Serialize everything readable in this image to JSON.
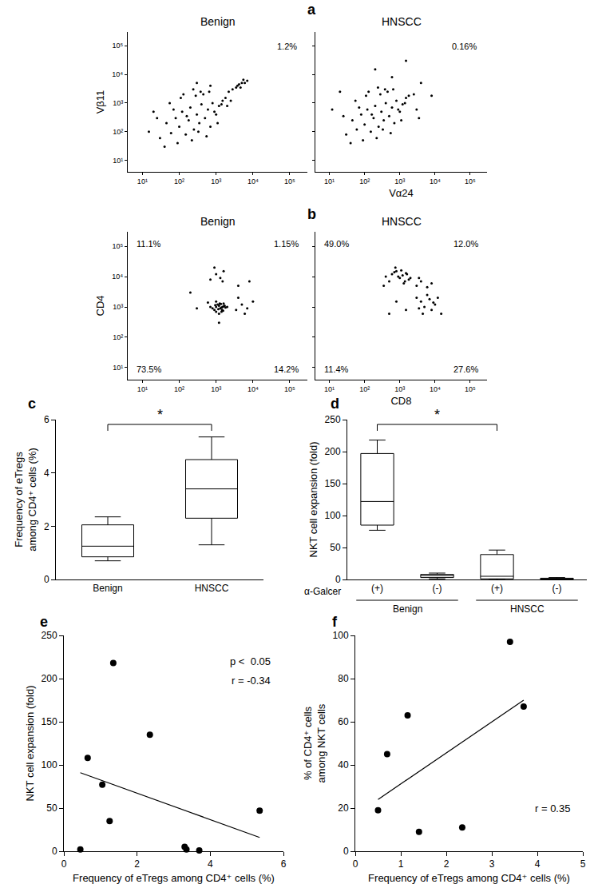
{
  "chart_data": [
    {
      "type": "scatter",
      "panel": "a",
      "title": "Benign",
      "ylabel": "Vβ11",
      "log": true,
      "color": "#000000",
      "xlim": [
        4,
        300000
      ],
      "ylim": [
        4,
        300000
      ],
      "xticks": [
        {
          "value": 10,
          "label": "10¹"
        },
        {
          "value": 100,
          "label": "10²"
        },
        {
          "value": 1000,
          "label": "10³"
        },
        {
          "value": 10000,
          "label": "10⁴"
        },
        {
          "value": 100000,
          "label": "10⁵"
        }
      ],
      "yticks": [
        {
          "value": 10,
          "label": "10¹"
        },
        {
          "value": 100,
          "label": "10²"
        },
        {
          "value": 1000,
          "label": "10³"
        },
        {
          "value": 10000,
          "label": "10⁴"
        },
        {
          "value": 100000,
          "label": "10⁵"
        }
      ],
      "x": [
        30,
        45,
        60,
        80,
        100,
        120,
        150,
        180,
        200,
        250,
        300,
        350,
        400,
        500,
        600,
        700,
        800,
        1000,
        1200,
        1500,
        40,
        70,
        90,
        110,
        160,
        220,
        280,
        330,
        450,
        550,
        650,
        900,
        1100,
        1400,
        1800,
        25,
        55,
        130,
        240,
        380,
        2200,
        2800,
        3500,
        4200,
        5000,
        6000,
        7000,
        3800,
        4600,
        5500,
        2000,
        15,
        20,
        2500,
        300,
        700
      ],
      "y": [
        60,
        200,
        90,
        300,
        150,
        500,
        80,
        250,
        700,
        120,
        400,
        200,
        900,
        300,
        600,
        150,
        1000,
        400,
        800,
        1200,
        30,
        600,
        40,
        1500,
        350,
        50,
        1800,
        100,
        2000,
        70,
        2500,
        500,
        200,
        900,
        1500,
        300,
        1000,
        2000,
        3000,
        2500,
        2500,
        3000,
        3500,
        4500,
        5000,
        5000,
        6000,
        4000,
        3500,
        6500,
        800,
        100,
        500,
        1200,
        5000,
        4000
      ],
      "gate": {
        "x": [
          2000,
          12000
        ],
        "y": [
          1200,
          9000
        ],
        "label": "1.2%"
      }
    },
    {
      "type": "scatter",
      "title": "HNSCC",
      "xlabel": "Vα24",
      "log": true,
      "color": "#000000",
      "tick_labels": "x",
      "xlim": [
        4,
        300000
      ],
      "ylim": [
        4,
        300000
      ],
      "xticks": [
        {
          "value": 10,
          "label": "10¹"
        },
        {
          "value": 100,
          "label": "10²"
        },
        {
          "value": 1000,
          "label": "10³"
        },
        {
          "value": 10000,
          "label": "10⁴"
        },
        {
          "value": 100000,
          "label": "10⁵"
        }
      ],
      "yticks": [
        10,
        100,
        1000,
        10000,
        100000
      ],
      "x": [
        30,
        45,
        60,
        80,
        100,
        120,
        150,
        180,
        200,
        250,
        300,
        350,
        400,
        500,
        600,
        700,
        800,
        1000,
        1200,
        1500,
        40,
        70,
        90,
        110,
        160,
        220,
        280,
        330,
        450,
        550,
        650,
        900,
        1100,
        1400,
        1800,
        25,
        55,
        130,
        240,
        380,
        2500,
        4000,
        8000,
        3000,
        600,
        1500,
        20,
        12,
        3500,
        200
      ],
      "y": [
        80,
        250,
        120,
        400,
        180,
        600,
        100,
        300,
        800,
        150,
        500,
        250,
        1000,
        350,
        700,
        200,
        1200,
        500,
        900,
        1500,
        40,
        700,
        50,
        1800,
        400,
        60,
        2000,
        120,
        2500,
        90,
        3000,
        600,
        250,
        1000,
        1800,
        350,
        1200,
        2500,
        3500,
        3000,
        2000,
        5000,
        1800,
        600,
        8000,
        30000,
        2500,
        600,
        300,
        15000
      ],
      "gate": {
        "x": [
          2000,
          12000
        ],
        "y": [
          1200,
          9000
        ],
        "label": "0.16%"
      }
    },
    {
      "type": "scatter",
      "panel": "b",
      "title": "Benign",
      "ylabel": "CD4",
      "log": true,
      "color": "#000000",
      "xlim": [
        4,
        300000
      ],
      "ylim": [
        4,
        300000
      ],
      "xticks": [
        {
          "value": 10,
          "label": "10¹"
        },
        {
          "value": 100,
          "label": "10²"
        },
        {
          "value": 1000,
          "label": "10³"
        },
        {
          "value": 10000,
          "label": "10⁴"
        },
        {
          "value": 100000,
          "label": "10⁵"
        }
      ],
      "yticks": [
        {
          "value": 10,
          "label": "10¹"
        },
        {
          "value": 100,
          "label": "10²"
        },
        {
          "value": 1000,
          "label": "10³"
        },
        {
          "value": 10000,
          "label": "10⁴"
        },
        {
          "value": 100000,
          "label": "10⁵"
        }
      ],
      "x": [
        800,
        1000,
        1200,
        1400,
        1600,
        900,
        1100,
        1300,
        1500,
        1700,
        700,
        1000,
        1250,
        1450,
        1800,
        950,
        1150,
        1350,
        1550,
        2000,
        600,
        1200,
        1600,
        1000,
        1400,
        700,
        1000,
        1300,
        1600,
        900,
        1500,
        3500,
        5000,
        7000,
        10000,
        4000,
        6000,
        4000,
        8000,
        300,
        200,
        1200
      ],
      "y": [
        900,
        1000,
        1100,
        950,
        1050,
        800,
        1200,
        900,
        1000,
        1100,
        1000,
        700,
        1300,
        800,
        950,
        1150,
        850,
        1250,
        750,
        1000,
        1400,
        600,
        1300,
        1500,
        700,
        8000,
        12000,
        9000,
        15000,
        20000,
        7000,
        800,
        1200,
        900,
        1500,
        2000,
        600,
        5000,
        7000,
        900,
        3000,
        300
      ],
      "quadrants": {
        "x_split": 2500,
        "y_split": 3000,
        "upper_left": "11.1%",
        "upper_right": "1.15%",
        "lower_left": "73.5%",
        "lower_right": "14.2%"
      }
    },
    {
      "type": "scatter",
      "title": "HNSCC",
      "xlabel": "CD8",
      "log": true,
      "color": "#000000",
      "tick_labels": "x",
      "xlim": [
        4,
        300000
      ],
      "ylim": [
        4,
        300000
      ],
      "xticks": [
        {
          "value": 10,
          "label": "10¹"
        },
        {
          "value": 100,
          "label": "10²"
        },
        {
          "value": 1000,
          "label": "10³"
        },
        {
          "value": 10000,
          "label": "10⁴"
        },
        {
          "value": 100000,
          "label": "10⁵"
        }
      ],
      "yticks": [
        10,
        100,
        1000,
        10000,
        100000
      ],
      "x": [
        400,
        600,
        800,
        1000,
        1200,
        1500,
        1800,
        500,
        700,
        900,
        1100,
        1300,
        1600,
        2000,
        350,
        750,
        1400,
        3000,
        4000,
        5000,
        6000,
        8000,
        10000,
        12000,
        15000,
        3500,
        7000,
        9000,
        4500,
        3000,
        4000,
        6000,
        3500,
        8000,
        800,
        1500,
        500
      ],
      "y": [
        10000,
        12000,
        15000,
        9000,
        11000,
        13000,
        8000,
        7000,
        14000,
        10000,
        16000,
        6000,
        12000,
        9000,
        5000,
        20000,
        7000,
        2000,
        1500,
        1000,
        2500,
        800,
        1200,
        2000,
        600,
        900,
        1800,
        1400,
        600,
        5000,
        7000,
        4500,
        9000,
        6000,
        1500,
        800,
        600
      ],
      "quadrants": {
        "x_split": 2500,
        "y_split": 3000,
        "upper_left": "49.0%",
        "upper_right": "12.0%",
        "lower_left": "11.4%",
        "lower_right": "27.6%"
      }
    },
    {
      "type": "box",
      "panel": "c",
      "ylabel": [
        "Frequency of eTregs",
        "among CD4⁺ cells (%)"
      ],
      "color": "#000000",
      "categories": [
        "Benign",
        "HNSCC"
      ],
      "lowerfence": [
        0.7,
        1.3
      ],
      "q1": [
        0.85,
        2.3
      ],
      "median": [
        1.25,
        3.4
      ],
      "q3": [
        2.05,
        4.5
      ],
      "upperfence": [
        2.35,
        5.35
      ],
      "ylim": [
        0,
        6
      ],
      "yticks": [
        0,
        2,
        4,
        6
      ],
      "significance": {
        "between": [
          "Benign",
          "HNSCC"
        ],
        "label": "*"
      }
    },
    {
      "type": "box",
      "panel": "d",
      "ylabel": "NKT cell expansion (fold)",
      "color": "#000000",
      "categories": [
        "(+)",
        "(-)",
        "(+)",
        "(-)"
      ],
      "x_groups": [
        "Benign",
        "Benign",
        "HNSCC",
        "HNSCC"
      ],
      "x_row_label": "α-Galcer",
      "lowerfence": [
        77,
        1,
        0,
        0
      ],
      "q1": [
        85,
        3,
        1,
        0.5
      ],
      "median": [
        122,
        6,
        5,
        1
      ],
      "q3": [
        197,
        8,
        39,
        2
      ],
      "upperfence": [
        218,
        10,
        46,
        3
      ],
      "ylim": [
        0,
        250
      ],
      "yticks": [
        0,
        50,
        100,
        150,
        200,
        250
      ],
      "significance": {
        "between": [
          [
            "Benign",
            "(+)"
          ],
          [
            "HNSCC",
            "(+)"
          ]
        ],
        "label": "*"
      }
    },
    {
      "type": "scatter",
      "panel": "e",
      "xlabel": "Frequency of eTregs among CD4⁺ cells (%)",
      "ylabel": "NKT cell expansion (fold)",
      "color": "#000000",
      "marker": "circle",
      "x": [
        0.45,
        0.65,
        1.05,
        1.25,
        1.35,
        2.35,
        3.3,
        3.35,
        3.7,
        5.35
      ],
      "y": [
        2,
        108,
        77,
        35,
        218,
        135,
        5,
        2,
        1,
        47
      ],
      "fit_line": {
        "x": [
          0.45,
          5.35
        ],
        "y": [
          91,
          16
        ]
      },
      "xlim": [
        0,
        6
      ],
      "xticks": [
        0,
        2,
        4,
        6
      ],
      "ylim": [
        0,
        250
      ],
      "yticks": [
        0,
        50,
        100,
        150,
        200,
        250
      ],
      "annotations": [
        "p <  0.05",
        "r = -0.34"
      ]
    },
    {
      "type": "scatter",
      "panel": "f",
      "xlabel": "Frequency of eTregs among CD4⁺ cells (%)",
      "ylabel": [
        "% of CD4⁺ cells",
        "among NKT cells"
      ],
      "color": "#000000",
      "marker": "circle",
      "x": [
        0.5,
        0.7,
        1.15,
        1.4,
        2.35,
        3.4,
        3.7
      ],
      "y": [
        19,
        45,
        63,
        9,
        11,
        97,
        67
      ],
      "fit_line": {
        "x": [
          0.5,
          3.7
        ],
        "y": [
          24,
          70
        ]
      },
      "xlim": [
        0,
        5
      ],
      "xticks": [
        0,
        1,
        2,
        3,
        4,
        5
      ],
      "ylim": [
        0,
        100
      ],
      "yticks": [
        0,
        20,
        40,
        60,
        80,
        100
      ],
      "annotations": [
        "r = 0.35"
      ]
    }
  ]
}
